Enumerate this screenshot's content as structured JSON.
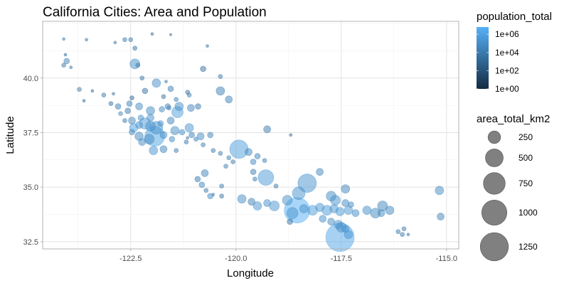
{
  "chart_data": {
    "type": "scatter",
    "title": "California Cities: Area and Population",
    "xlabel": "Longitude",
    "ylabel": "Latitude",
    "xlim": [
      -124.59,
      -114.71
    ],
    "ylim": [
      32.17,
      42.6
    ],
    "x_ticks": [
      -122.5,
      -120,
      -117.5,
      -115
    ],
    "x_tick_labels": [
      "-122.5",
      "-120.0",
      "-117.5",
      "-115.0"
    ],
    "y_ticks": [
      32.5,
      35,
      37.5,
      40
    ],
    "y_tick_labels": [
      "32.5",
      "35.0",
      "37.5",
      "40.0"
    ],
    "grid": true,
    "color_legend": {
      "title": "population_total",
      "scale": "log10",
      "low_color": "#132B43",
      "high_color": "#56B1F7",
      "range_log10": [
        0,
        6.8
      ],
      "breaks_log10": [
        6,
        4,
        2,
        0
      ],
      "labels": [
        "1e+06",
        "1e+04",
        "1e+02",
        "1e+00"
      ]
    },
    "size_legend": {
      "title": "area_total_km2",
      "breaks": [
        250,
        500,
        750,
        1000,
        1250
      ],
      "labels": [
        "250",
        "500",
        "750",
        "1000",
        "1250"
      ]
    },
    "legend_position": "right",
    "point_fields": [
      "longitude",
      "latitude",
      "area_total_km2",
      "population_total"
    ],
    "points": [
      [
        -124.09,
        41.79,
        13,
        7000
      ],
      [
        -123.55,
        41.76,
        13,
        3000
      ],
      [
        -122.64,
        41.76,
        29,
        8000
      ],
      [
        -122.5,
        41.76,
        29,
        7500
      ],
      [
        -121.99,
        42.02,
        13,
        1500
      ],
      [
        -121.55,
        41.99,
        8,
        700
      ],
      [
        -122.87,
        41.63,
        13,
        3000
      ],
      [
        -122.4,
        41.37,
        29,
        4000
      ],
      [
        -120.68,
        41.47,
        13,
        3000
      ],
      [
        -122.33,
        40.59,
        29,
        9000
      ],
      [
        -122.4,
        40.65,
        156,
        90000
      ],
      [
        -124.05,
        41.07,
        13,
        2000
      ],
      [
        -124.02,
        40.78,
        51,
        27000
      ],
      [
        -124.09,
        40.59,
        29,
        6000
      ],
      [
        -123.92,
        40.49,
        13,
        3000
      ],
      [
        -120.78,
        40.42,
        51,
        3000
      ],
      [
        -121.89,
        39.77,
        115,
        86000
      ],
      [
        -122.23,
        40,
        29,
        5000
      ],
      [
        -121.66,
        39.84,
        13,
        4000
      ],
      [
        -120.37,
        40.07,
        29,
        8000
      ],
      [
        -121.55,
        39.51,
        51,
        19000
      ],
      [
        -121.15,
        39.35,
        29,
        3000
      ],
      [
        -120.37,
        39.41,
        115,
        16000
      ],
      [
        -120.17,
        39.02,
        80,
        21000
      ],
      [
        -123.72,
        39.48,
        29,
        7000
      ],
      [
        -123.61,
        38.96,
        13,
        1500
      ],
      [
        -123.14,
        39.22,
        29,
        10000
      ],
      [
        -122.91,
        39.28,
        13,
        2000
      ],
      [
        -122.16,
        39.41,
        51,
        3000
      ],
      [
        -122.47,
        39.09,
        29,
        1000
      ],
      [
        -121.72,
        39.15,
        29,
        4000
      ],
      [
        -121.42,
        39.02,
        29,
        12000
      ],
      [
        -121.11,
        39.22,
        29,
        13000
      ],
      [
        -121.35,
        38.7,
        115,
        120000
      ],
      [
        -121.62,
        38.7,
        51,
        30000
      ],
      [
        -121.07,
        38.63,
        80,
        43000
      ],
      [
        -120.9,
        38.7,
        51,
        10000
      ],
      [
        -122.97,
        38.83,
        29,
        4000
      ],
      [
        -122.8,
        38.7,
        51,
        11000
      ],
      [
        -122.57,
        38.5,
        51,
        9000
      ],
      [
        -122.3,
        38.7,
        80,
        66000
      ],
      [
        -122.03,
        38.5,
        115,
        65000
      ],
      [
        -121.76,
        38.57,
        51,
        55000
      ],
      [
        -121.39,
        38.44,
        204,
        466000
      ],
      [
        -121.55,
        38.05,
        80,
        30000
      ],
      [
        -121.79,
        37.92,
        51,
        60000
      ],
      [
        -122.03,
        38.18,
        80,
        110000
      ],
      [
        -122.26,
        38.18,
        51,
        100000
      ],
      [
        -122.47,
        38.05,
        80,
        50000
      ],
      [
        -122.64,
        38.05,
        29,
        8000
      ],
      [
        -122.74,
        38.37,
        29,
        57000
      ],
      [
        -122.43,
        37.72,
        115,
        805000
      ],
      [
        -122.3,
        37.85,
        80,
        120000
      ],
      [
        -122.16,
        37.92,
        204,
        390000
      ],
      [
        -122.03,
        37.79,
        156,
        125000
      ],
      [
        -121.89,
        37.72,
        258,
        150000
      ],
      [
        -121.93,
        37.33,
        625,
        945000
      ],
      [
        -122.3,
        37.33,
        115,
        30000
      ],
      [
        -122.47,
        37.52,
        51,
        40000
      ],
      [
        -122.23,
        37.07,
        80,
        60000
      ],
      [
        -122.06,
        37.2,
        156,
        70000
      ],
      [
        -121.72,
        37.39,
        80,
        80000
      ],
      [
        -121.45,
        37.59,
        115,
        85000
      ],
      [
        -121.28,
        37.52,
        51,
        70000
      ],
      [
        -121.11,
        37.72,
        115,
        200000
      ],
      [
        -121.05,
        37.39,
        51,
        20000
      ],
      [
        -120.84,
        37.33,
        80,
        70000
      ],
      [
        -120.61,
        37.39,
        51,
        25000
      ],
      [
        -121.52,
        37.2,
        51,
        48000
      ],
      [
        -121.96,
        36.68,
        115,
        150000
      ],
      [
        -121.72,
        36.74,
        80,
        30000
      ],
      [
        -121.42,
        36.68,
        29,
        13000
      ],
      [
        -121.18,
        37.07,
        29,
        10000
      ],
      [
        -120.95,
        37.2,
        29,
        16000
      ],
      [
        -120.78,
        36.94,
        29,
        11000
      ],
      [
        -120.54,
        36.68,
        29,
        12000
      ],
      [
        -120.37,
        36.55,
        29,
        14000
      ],
      [
        -120.17,
        36.35,
        29,
        14000
      ],
      [
        -119.93,
        36.74,
        539,
        495000
      ],
      [
        -119.7,
        36.61,
        80,
        40000
      ],
      [
        -119.49,
        36.42,
        51,
        25000
      ],
      [
        -119.32,
        36.22,
        29,
        22000
      ],
      [
        -119.26,
        37.65,
        80,
        8000
      ],
      [
        -119.59,
        36.16,
        51,
        50000
      ],
      [
        -119.29,
        35.44,
        386,
        347000
      ],
      [
        -119.59,
        35.7,
        51,
        15000
      ],
      [
        -120.07,
        36.16,
        29,
        13000
      ],
      [
        -120.24,
        35.96,
        29,
        15000
      ],
      [
        -120.74,
        35.64,
        80,
        30000
      ],
      [
        -120.91,
        35.37,
        51,
        10000
      ],
      [
        -120.81,
        35.11,
        51,
        45000
      ],
      [
        -120.71,
        34.85,
        29,
        10000
      ],
      [
        -120.61,
        34.59,
        51,
        55000
      ],
      [
        -120.34,
        34.59,
        29,
        5000
      ],
      [
        -119.86,
        34.46,
        115,
        88000
      ],
      [
        -119.63,
        34.33,
        80,
        20000
      ],
      [
        -119.49,
        34.14,
        115,
        200000
      ],
      [
        -119.26,
        34.27,
        80,
        106000
      ],
      [
        -119.09,
        34.14,
        156,
        200000
      ],
      [
        -118.78,
        34.4,
        156,
        125000
      ],
      [
        -118.31,
        35.18,
        539,
        160000
      ],
      [
        -118.51,
        34.72,
        258,
        156000
      ],
      [
        -118.01,
        35.7,
        80,
        28000
      ],
      [
        -117.4,
        34.92,
        115,
        33000
      ],
      [
        -117.74,
        34.59,
        156,
        75000
      ],
      [
        -117.64,
        34.4,
        156,
        115000
      ],
      [
        -118.55,
        33.94,
        1033,
        3800000
      ],
      [
        -118.72,
        33.42,
        51,
        4000
      ],
      [
        -118.66,
        33.81,
        204,
        200000
      ],
      [
        -118.39,
        34.01,
        115,
        150000
      ],
      [
        -118.18,
        33.94,
        156,
        460000
      ],
      [
        -118.01,
        34.07,
        115,
        200000
      ],
      [
        -117.84,
        33.94,
        156,
        350000
      ],
      [
        -117.67,
        34.01,
        115,
        180000
      ],
      [
        -117.53,
        33.88,
        115,
        300000
      ],
      [
        -117.33,
        33.94,
        115,
        200000
      ],
      [
        -117.16,
        33.81,
        80,
        100000
      ],
      [
        -117.4,
        34.27,
        80,
        50000
      ],
      [
        -117.27,
        34.2,
        51,
        40000
      ],
      [
        -117.94,
        33.55,
        80,
        85000
      ],
      [
        -117.74,
        33.42,
        80,
        65000
      ],
      [
        -117.57,
        33.29,
        115,
        130000
      ],
      [
        -117.4,
        33.09,
        80,
        110000
      ],
      [
        -117.53,
        32.7,
        1276,
        1300000
      ],
      [
        -117.5,
        33.16,
        156,
        150000
      ],
      [
        -117.33,
        32.83,
        115,
        250000
      ],
      [
        -116.89,
        33.94,
        115,
        100000
      ],
      [
        -116.69,
        33.81,
        156,
        60000
      ],
      [
        -116.52,
        34.14,
        156,
        30000
      ],
      [
        -116.35,
        33.94,
        115,
        40000
      ],
      [
        -116.55,
        33.81,
        80,
        45000
      ],
      [
        -116.15,
        32.96,
        29,
        8000
      ],
      [
        -116.01,
        33.09,
        29,
        10000
      ],
      [
        -116.05,
        32.83,
        29,
        9000
      ],
      [
        -115.91,
        32.83,
        13,
        4000
      ],
      [
        -115.17,
        34.85,
        115,
        60000
      ],
      [
        -115.14,
        33.65,
        80,
        30000
      ],
      [
        -118.7,
        37.39,
        13,
        1000
      ],
      [
        -119.05,
        35.05,
        29,
        10000
      ],
      [
        -119.55,
        35.37,
        29,
        12000
      ],
      [
        -120.34,
        35.05,
        29,
        12000
      ],
      [
        -120.54,
        34.66,
        13,
        5000
      ],
      [
        -121.15,
        37.26,
        13,
        4000
      ],
      [
        -121.59,
        38.63,
        29,
        25000
      ],
      [
        -122.53,
        38.83,
        51,
        20000
      ],
      [
        -123.41,
        39.41,
        13,
        2000
      ]
    ]
  }
}
